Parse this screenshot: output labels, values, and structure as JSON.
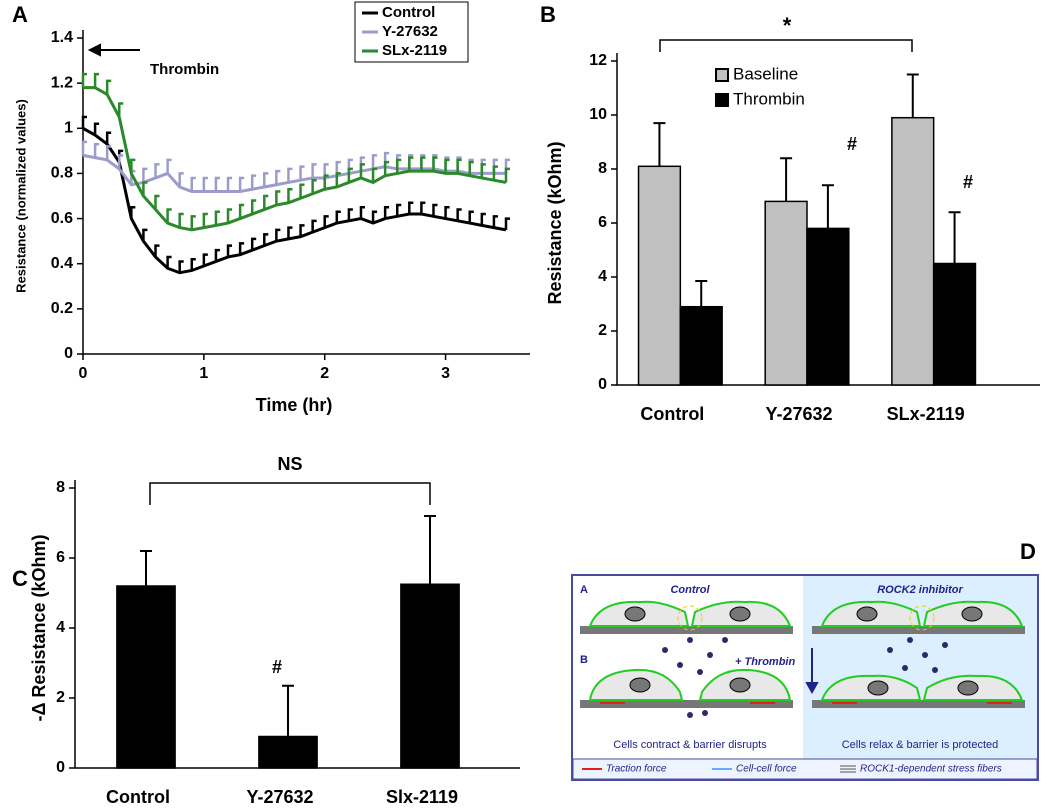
{
  "chart_data": [
    {
      "panel": "A",
      "type": "line",
      "y_label": "Resistance (normalized values)",
      "x_label": "Time (hr)",
      "annotation": "Thrombin",
      "x": [
        0,
        0.1,
        0.2,
        0.3,
        0.4,
        0.5,
        0.6,
        0.7,
        0.8,
        0.9,
        1.0,
        1.1,
        1.2,
        1.3,
        1.4,
        1.5,
        1.6,
        1.7,
        1.8,
        1.9,
        2.0,
        2.1,
        2.2,
        2.3,
        2.4,
        2.5,
        2.6,
        2.7,
        2.8,
        2.9,
        3.0,
        3.1,
        3.2,
        3.3,
        3.4,
        3.5
      ],
      "xlim": [
        0,
        3.5
      ],
      "xticks": [
        0,
        1,
        2,
        3
      ],
      "ylim": [
        0,
        1.4
      ],
      "yticks": [
        0,
        0.2,
        0.4,
        0.6,
        0.8,
        1,
        1.2,
        1.4
      ],
      "series": [
        {
          "name": "Control",
          "color": "#000000",
          "error": 0.05,
          "values": [
            1.0,
            0.97,
            0.93,
            0.85,
            0.6,
            0.5,
            0.43,
            0.38,
            0.36,
            0.37,
            0.39,
            0.41,
            0.43,
            0.44,
            0.46,
            0.48,
            0.5,
            0.51,
            0.52,
            0.54,
            0.56,
            0.58,
            0.59,
            0.6,
            0.58,
            0.6,
            0.61,
            0.62,
            0.62,
            0.61,
            0.6,
            0.59,
            0.58,
            0.57,
            0.56,
            0.55
          ]
        },
        {
          "name": "Y-27632",
          "color": "#9c9ccc",
          "error": 0.06,
          "values": [
            0.88,
            0.87,
            0.86,
            0.82,
            0.75,
            0.76,
            0.78,
            0.8,
            0.74,
            0.72,
            0.72,
            0.72,
            0.72,
            0.72,
            0.73,
            0.74,
            0.75,
            0.76,
            0.77,
            0.78,
            0.78,
            0.79,
            0.8,
            0.81,
            0.82,
            0.83,
            0.82,
            0.82,
            0.82,
            0.82,
            0.81,
            0.81,
            0.8,
            0.8,
            0.8,
            0.8
          ]
        },
        {
          "name": "SLx-2119",
          "color": "#2a8a2a",
          "error": 0.06,
          "values": [
            1.18,
            1.18,
            1.15,
            1.05,
            0.8,
            0.7,
            0.64,
            0.58,
            0.56,
            0.55,
            0.56,
            0.57,
            0.58,
            0.6,
            0.62,
            0.64,
            0.66,
            0.67,
            0.69,
            0.71,
            0.73,
            0.74,
            0.76,
            0.78,
            0.76,
            0.79,
            0.8,
            0.81,
            0.81,
            0.81,
            0.8,
            0.8,
            0.79,
            0.78,
            0.77,
            0.76
          ]
        }
      ]
    },
    {
      "panel": "B",
      "type": "bar",
      "y_label": "Resistance (kOhm)",
      "categories": [
        "Control",
        "Y-27632",
        "SLx-2119"
      ],
      "ylim": [
        0,
        12
      ],
      "yticks": [
        0,
        2,
        4,
        6,
        8,
        10,
        12
      ],
      "annotations": [
        "*",
        "#",
        "#"
      ],
      "series": [
        {
          "name": "Baseline",
          "color": "#c0c0c0",
          "values": [
            8.1,
            6.8,
            9.9
          ],
          "errors": [
            1.6,
            1.6,
            1.6
          ]
        },
        {
          "name": "Thrombin",
          "color": "#000000",
          "values": [
            2.9,
            5.8,
            4.5
          ],
          "errors": [
            0.95,
            1.6,
            1.9
          ]
        }
      ]
    },
    {
      "panel": "C",
      "type": "bar",
      "y_label": "-Δ Resistance (kOhm)",
      "categories": [
        "Control",
        "Y-27632",
        "Slx-2119"
      ],
      "values": [
        5.2,
        0.9,
        5.25
      ],
      "errors": [
        1.0,
        1.45,
        1.95
      ],
      "color": "#000000",
      "ylim": [
        0,
        8
      ],
      "yticks": [
        0,
        2,
        4,
        6,
        8
      ],
      "annotations": [
        "NS",
        "#"
      ]
    }
  ],
  "diagram": {
    "panel": "D",
    "row_a": "A",
    "row_b": "B",
    "left_title": "Control",
    "right_title": "ROCK2 inhibitor",
    "treatment": "+ Thrombin",
    "left_caption": "Cells contract & barrier disrupts",
    "right_caption": "Cells relax & barrier is protected",
    "legend": [
      "Traction force",
      "Cell-cell force",
      "ROCK1-dependent stress fibers"
    ]
  }
}
